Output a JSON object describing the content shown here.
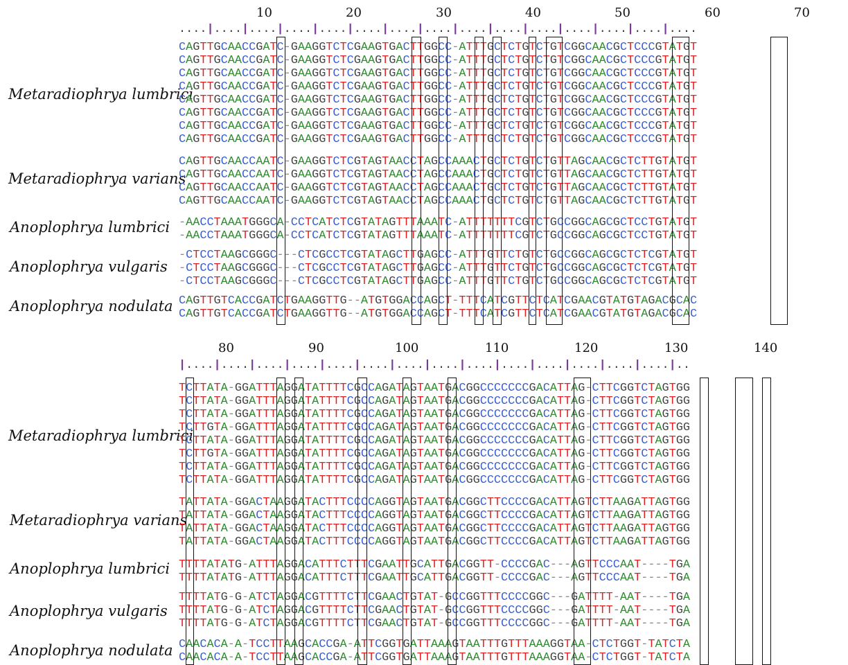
{
  "colors": {
    "A": "#2e8b2e",
    "C": "#3a5fcd",
    "G": "#444444",
    "T": "#e02020",
    "gap": "#888888",
    "ruler_tick": "#7a3a9a"
  },
  "blocks": [
    {
      "positions": [
        "10",
        "20",
        "30",
        "40",
        "50",
        "60",
        "70"
      ],
      "ruler": "....|....|....|....|....|....|....|....|....|....|....|....|....|....|....",
      "groups": [
        {
          "species": "Metaradiophrya lumbrici",
          "sequences": [
            "CAGTTGCAACCGATC-GAAGGTCTCGAAGTGACTTGGCC-ATTTGCTCTGTCTGTCGGCAACGCTCCCGTATGT",
            "CAGTTGCAACCGATC-GAAGGTCTCGAAGTGACTTGGCC-ATTTGCTCTGTCTGTCGGCAACGCTCCCGTATGT",
            "CAGTTGCAACCGATC-GAAGGTCTCGAAGTGACTTGGCC-ATTTGCTCTGTCTGTCGGCAACGCTCCCGTATGT",
            "CAGTTGCAACCGATC-GAAGGTCTCGAAGTGACTTGGCC-ATTTGCTCTGTCTGTCGGCAACGCTCCCGTATGT",
            "CAGTTGCAACCGATC-GAAGGTCTCGAAGTGACTTGGCC-ATTTGCTCTGTCTGTCGGCAACGCTCCCGTATGT",
            "CAGTTGCAACCGATC-GAAGGTCTCGAAGTGACTTGGCC-ATTTGCTCTGTCTGTCGGCAACGCTCCCGTATGT",
            "CAGTTGCAACCGATC-GAAGGTCTCGAAGTGACTTGGCC-ATTTGCTCTGTCTGTCGGCAACGCTCCCGTATGT",
            "CAGTTGCAACCGATC-GAAGGTCTCGAAGTGACTTGGCC-ATTTGCTCTGTCTGTCGGCAACGCTCCCGTATGT"
          ]
        },
        {
          "species": "Metaradiophrya varians",
          "sequences": [
            "CAGTTGCAACCAATC-GAAGGTCTCGTAGTAACCTAGCCAAACTGCTCTGTCTGTTAGCAACGCTCTTGTATGT",
            "CAGTTGCAACCAATC-GAAGGTCTCGTAGTAACCTAGCCAAACTGCTCTGTCTGTTAGCAACGCTCTTGTATGT",
            "CAGTTGCAACCAATC-GAAGGTCTCGTAGTAACCTAGCCAAACTGCTCTGTCTGTTAGCAACGCTCTTGTATGT",
            "CAGTTGCAACCAATC-GAAGGTCTCGTAGTAACCTAGCCAAACTGCTCTGTCTGTTAGCAACGCTCTTGTATGT"
          ]
        },
        {
          "species": "Anoplophrya lumbrici",
          "sequences": [
            "-AACCTAAATGGGCA-CCTCATCTCGTATAGTTTAAATC-ATTTTTTTCGTCTGCCGGCAGCGCTCCTGTATGT",
            "-AACCTAAATGGGCA-CCTCATCTCGTATAGTTTAAATC-ATTTTTTTCGTCTGCCGGCAGCGCTCCTGTATGT"
          ]
        },
        {
          "species": "Anoplophrya vulgaris",
          "sequences": [
            "-CTCCTAAGCGGGC---CTCGCCTCGTATAGCTTGAGCC-ATTTGTTCTGTCTGCCGGCAGCGCTCTCGTATGT",
            "-CTCCTAAGCGGGC---CTCGCCTCGTATAGCTTGAGCC-ATTTGTTCTGTCTGCCGGCAGCGCTCTCGTATGT",
            "-CTCCTAAGCGGGC---CTCGCCTCGTATAGCTTGAGCC-ATTTGTTCTGTCTGCCGGCAGCGCTCTCGTATGT"
          ]
        },
        {
          "species": "Anoplophrya nodulata",
          "sequences": [
            "CAGTTGTCACCGATCTGAAGGTTG--ATGTGGACCAGCT-TTTCATCGTTCTCATCGAACGTATGTAGACGCAC",
            "CAGTTGTCACCGATCTGAAGGTTG--ATGTGGACCAGCT-TTTCATCGTTCTCATCGAACGTATGTAGACGCAC"
          ]
        }
      ]
    },
    {
      "positions": [
        "80",
        "90",
        "100",
        "110",
        "120",
        "130",
        "140"
      ],
      "ruler": "|....|....|....|....|....|....|....|....|....|....|....|....|....|....|..",
      "groups": [
        {
          "species": "Metaradiophrya lumbrici",
          "sequences": [
            "TCTTATA-GGATTTAGGATATTTTCGCCAGATAGTAATGACGGCCCCCCCGACATTAG-CTTCGGTCTAGTGG",
            "TCTTATA-GGATTTAGGATATTTTCGCCAGATAGTAATGACGGCCCCCCCGACATTAG-CTTCGGTCTAGTGG",
            "TCTTATA-GGATTTAGGATATTTTCGCCAGATAGTAATGACGGCCCCCCCGACATTAG-CTTCGGTCTAGTGG",
            "TCTTGTA-GGATTTAGGATATTTTCGCCAGATAGTAATGACGGCCCCCCCGACATTAG-CTTCGGTCTAGTGG",
            "TCTTATA-GGATTTAGGATATTTTCGCCAGATAGTAATGACGGCCCCCCCGACATTAG-CTTCGGTCTAGTGG",
            "TCTTGTA-GGATTTAGGATATTTTCGCCAGATAGTAATGACGGCCCCCCCGACATTAG-CTTCGGTCTAGTGG",
            "TCTTATA-GGATTTAGGATATTTTCGCCAGATAGTAATGACGGCCCCCCCGACATTAG-CTTCGGTCTAGTGG",
            "TCTTATA-GGATTTAGGATATTTTCGCCAGATAGTAATGACGGCCCCCCCGACATTAG-CTTCGGTCTAGTGG"
          ]
        },
        {
          "species": "Metaradiophrya varians",
          "sequences": [
            "TATTATA-GGACTAAGGATACTTTCCCCAGGTAGTAATGACGGCTTCCCCGACATTAGTCTTAAGATTAGTGG",
            "TATTATA-GGACTAAGGATACTTTCCCCAGGTAGTAATGACGGCTTCCCCGACATTAGTCTTAAGATTAGTGG",
            "TATTATA-GGACTAAGGATACTTTCCCCAGGTAGTAATGACGGCTTCCCCGACATTAGTCTTAAGATTAGTGG",
            "TATTATA-GGACTAAGGATACTTTCCCCAGGTAGTAATGACGGCTTCCCCGACATTAGTCTTAAGATTAGTGG"
          ]
        },
        {
          "species": "Anoplophrya lumbrici",
          "sequences": [
            "TTTTATATG-ATTTAGGACATTTCTTTCGAATTGCATTGACGGTT-CCCCGAC---AGTTCCCAAT----TGA",
            "TTTTATATG-ATTTAGGACATTTCTTTCGAATTGCATTGACGGTT-CCCCGAC---AGTTCCCAAT----TGA"
          ]
        },
        {
          "species": "Anoplophrya vulgaris",
          "sequences": [
            "TTTTATG-G-ATCTAGGACGTTTTCTTCGAACTGTAT-GCCGGTTTCCCCGGC---GATTTT-AAT----TGA",
            "TTTTATG-G-ATCTAGGACGTTTTCTTCGAACTGTAT-GCCGGTTTCCCCGGC---GATTTT-AAT----TGA",
            "TTTTATG-G-ATCTAGGACGTTTTCTTCGAACTGTAT-GCCGGTTTCCCCGGC---GATTTT-AAT----TGA"
          ]
        },
        {
          "species": "Anoplophrya nodulata",
          "sequences": [
            "CAACACA-A-TCCTTAAGCACCGA-ATTCGGTGATTAAAGTAATTTGTTTAAAGGTAA-CTCTGGT-TATCTA",
            "CAACACA-A-TCCTTAAGCACCGA-ATTCGGTGATTAAAGTAATTTGTTTAAAGGTAA-CTCTGGT-TATCTA"
          ]
        }
      ]
    }
  ]
}
